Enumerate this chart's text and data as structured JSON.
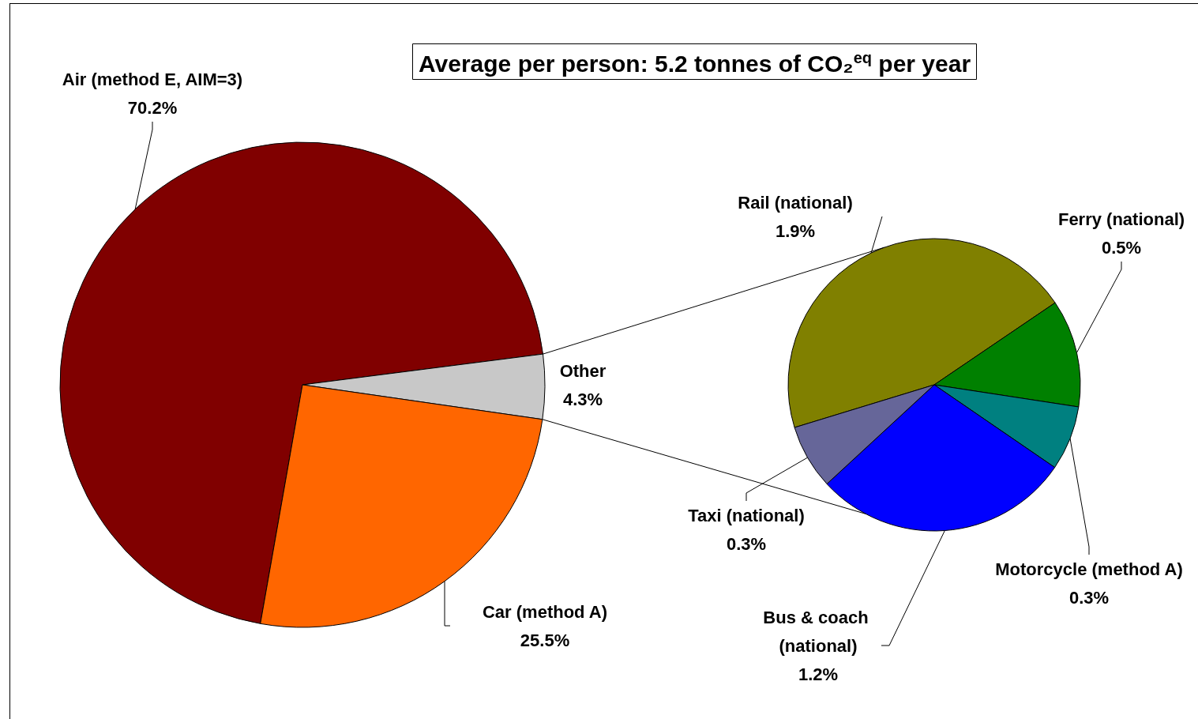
{
  "chart_data": [
    {
      "type": "pie",
      "title": "Average per person: 5.2 tonnes of CO₂$^{eq}$ per year",
      "categories": [
        "Air (method E, AIM=3)",
        "Other",
        "Car (method A)"
      ],
      "values": [
        70.2,
        4.3,
        25.5
      ],
      "colors": [
        "#800000",
        "#c8c8c8",
        "#ff6600"
      ],
      "value_labels": [
        "70.2%",
        "4.3%",
        "25.5%"
      ],
      "legend": false
    },
    {
      "type": "pie",
      "categories": [
        "Rail (national)",
        "Ferry (national)",
        "Motorcycle (method A)",
        "Bus & coach (national)",
        "Taxi (national)"
      ],
      "values": [
        1.9,
        0.5,
        0.3,
        1.2,
        0.3
      ],
      "colors": [
        "#808000",
        "#008000",
        "#008080",
        "#0000ff",
        "#666699"
      ],
      "value_labels": [
        "1.9%",
        "0.5%",
        "0.3%",
        "1.2%",
        "0.3%"
      ],
      "legend": false
    }
  ]
}
